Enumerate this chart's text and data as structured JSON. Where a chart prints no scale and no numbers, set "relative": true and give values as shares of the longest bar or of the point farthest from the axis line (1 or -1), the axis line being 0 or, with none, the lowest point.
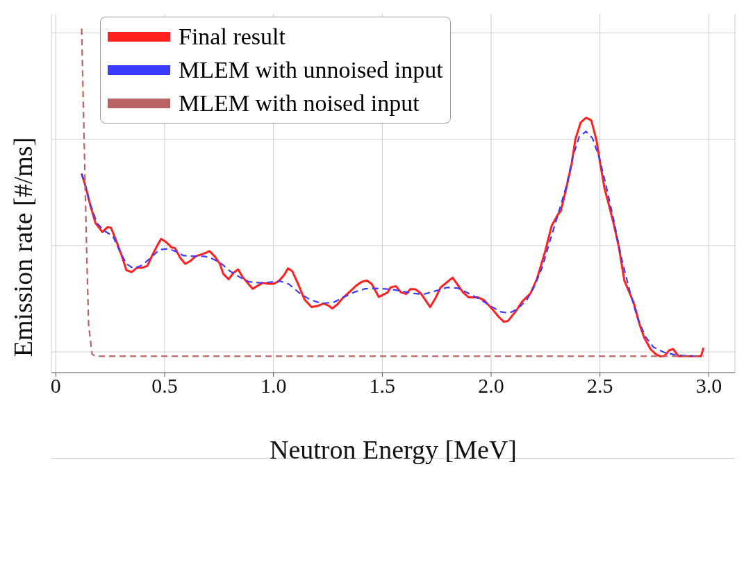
{
  "chart_data": {
    "type": "line",
    "xlabel": "Neutron Energy [MeV]",
    "ylabel": "Emission rate [#/ms]",
    "relative": true,
    "xlim": [
      -0.02,
      3.12
    ],
    "xticks": [
      0,
      0.5,
      {
        "value": 1,
        "label": "1.0"
      },
      1.5,
      {
        "value": 2,
        "label": "2.0"
      },
      2.5,
      {
        "value": 3,
        "label": "3.0"
      }
    ],
    "grid": true,
    "legend": "top left",
    "marker": "none",
    "series": [
      {
        "name": "Final result",
        "color": "#ff2020",
        "line_style": "solid",
        "x": [
          0.119,
          0.135,
          0.159,
          0.183,
          0.214,
          0.238,
          0.254,
          0.278,
          0.302,
          0.325,
          0.349,
          0.373,
          0.397,
          0.421,
          0.444,
          0.468,
          0.484,
          0.508,
          0.532,
          0.548,
          0.571,
          0.595,
          0.619,
          0.643,
          0.683,
          0.706,
          0.73,
          0.754,
          0.77,
          0.794,
          0.817,
          0.838,
          0.857,
          0.881,
          0.905,
          0.929,
          0.952,
          0.976,
          1.0,
          1.024,
          1.048,
          1.067,
          1.087,
          1.111,
          1.143,
          1.175,
          1.206,
          1.23,
          1.254,
          1.27,
          1.294,
          1.317,
          1.349,
          1.381,
          1.405,
          1.429,
          1.452,
          1.484,
          1.525,
          1.538,
          1.562,
          1.586,
          1.61,
          1.629,
          1.653,
          1.677,
          1.72,
          1.744,
          1.768,
          1.823,
          1.871,
          1.896,
          1.938,
          1.968,
          2.005,
          2.035,
          2.059,
          2.078,
          2.114,
          2.144,
          2.181,
          2.211,
          2.248,
          2.278,
          2.308,
          2.32,
          2.345,
          2.369,
          2.387,
          2.411,
          2.436,
          2.46,
          2.484,
          2.502,
          2.521,
          2.539,
          2.563,
          2.587,
          2.612,
          2.654,
          2.684,
          2.703,
          2.733,
          2.757,
          2.775,
          2.794,
          2.818,
          2.836,
          2.861,
          2.964,
          2.976
        ],
        "values": [
          0.557,
          0.523,
          0.46,
          0.406,
          0.379,
          0.394,
          0.392,
          0.352,
          0.309,
          0.262,
          0.257,
          0.27,
          0.27,
          0.276,
          0.309,
          0.34,
          0.358,
          0.348,
          0.332,
          0.33,
          0.301,
          0.282,
          0.291,
          0.305,
          0.314,
          0.321,
          0.305,
          0.282,
          0.251,
          0.235,
          0.255,
          0.265,
          0.243,
          0.224,
          0.206,
          0.216,
          0.224,
          0.221,
          0.221,
          0.229,
          0.247,
          0.268,
          0.259,
          0.224,
          0.173,
          0.15,
          0.154,
          0.161,
          0.154,
          0.146,
          0.158,
          0.177,
          0.196,
          0.216,
          0.227,
          0.231,
          0.22,
          0.181,
          0.195,
          0.21,
          0.214,
          0.195,
          0.19,
          0.205,
          0.204,
          0.192,
          0.15,
          0.177,
          0.21,
          0.24,
          0.195,
          0.18,
          0.18,
          0.171,
          0.144,
          0.12,
          0.105,
          0.108,
          0.138,
          0.168,
          0.192,
          0.237,
          0.32,
          0.398,
          0.434,
          0.443,
          0.512,
          0.584,
          0.662,
          0.713,
          0.728,
          0.72,
          0.659,
          0.584,
          0.512,
          0.467,
          0.404,
          0.332,
          0.231,
          0.165,
          0.093,
          0.057,
          0.021,
          0.006,
          0,
          0,
          0.018,
          0.022,
          0,
          0,
          0.026
        ]
      },
      {
        "name": "MLEM with unnoised input",
        "color": "#3b3bff",
        "line_style": "dashed",
        "x": [
          0.119,
          0.135,
          0.159,
          0.19,
          0.222,
          0.262,
          0.294,
          0.325,
          0.357,
          0.397,
          0.437,
          0.476,
          0.516,
          0.548,
          0.587,
          0.635,
          0.683,
          0.722,
          0.762,
          0.802,
          0.849,
          0.889,
          0.937,
          0.984,
          1.032,
          1.071,
          1.119,
          1.167,
          1.222,
          1.278,
          1.325,
          1.373,
          1.421,
          1.468,
          1.524,
          1.544,
          1.592,
          1.641,
          1.689,
          1.738,
          1.799,
          1.847,
          1.896,
          1.956,
          2.005,
          2.047,
          2.084,
          2.12,
          2.163,
          2.199,
          2.235,
          2.272,
          2.308,
          2.345,
          2.375,
          2.405,
          2.436,
          2.466,
          2.496,
          2.527,
          2.563,
          2.6,
          2.636,
          2.672,
          2.709,
          2.745,
          2.794,
          2.854,
          2.964
        ],
        "values": [
          0.557,
          0.523,
          0.464,
          0.406,
          0.383,
          0.367,
          0.321,
          0.282,
          0.268,
          0.278,
          0.301,
          0.325,
          0.328,
          0.321,
          0.307,
          0.305,
          0.305,
          0.297,
          0.282,
          0.259,
          0.24,
          0.227,
          0.224,
          0.226,
          0.229,
          0.22,
          0.193,
          0.173,
          0.161,
          0.165,
          0.181,
          0.196,
          0.206,
          0.207,
          0.205,
          0.204,
          0.198,
          0.192,
          0.189,
          0.198,
          0.21,
          0.208,
          0.192,
          0.171,
          0.15,
          0.135,
          0.132,
          0.144,
          0.171,
          0.213,
          0.272,
          0.356,
          0.434,
          0.518,
          0.608,
          0.671,
          0.686,
          0.665,
          0.608,
          0.524,
          0.416,
          0.296,
          0.201,
          0.117,
          0.06,
          0.028,
          0.012,
          0.003,
          0
        ]
      },
      {
        "name": "MLEM with noised input",
        "color": "#b86464",
        "line_style": "dashed",
        "x": [
          0.119,
          0.127,
          0.135,
          0.143,
          0.151,
          0.167,
          0.183,
          2.976
        ],
        "values": [
          1,
          0.755,
          0.523,
          0.29,
          0.095,
          0.006,
          0,
          0
        ]
      }
    ]
  }
}
